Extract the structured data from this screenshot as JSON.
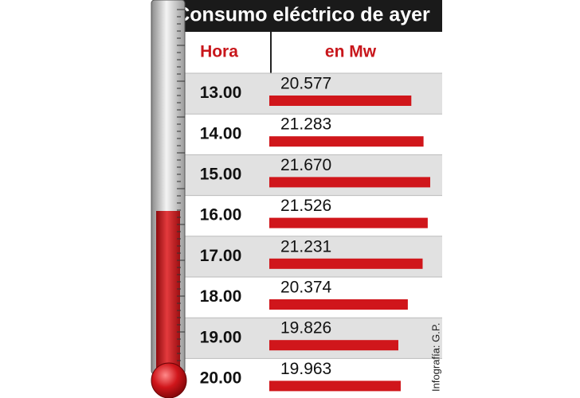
{
  "chart_data": {
    "type": "bar",
    "title": "Consumo eléctrico de ayer",
    "category_label": "Hora",
    "value_label": "en Mw",
    "categories": [
      "13.00",
      "14.00",
      "15.00",
      "16.00",
      "17.00",
      "18.00",
      "19.00",
      "20.00"
    ],
    "values": [
      20577,
      21283,
      21670,
      21526,
      21231,
      20374,
      19826,
      19963
    ],
    "value_labels": [
      "20.577",
      "21.283",
      "21.670",
      "21.526",
      "21.231",
      "20.374",
      "19.826",
      "19.963"
    ],
    "color": "#d0161b",
    "credit": "Infografía: G.P."
  }
}
